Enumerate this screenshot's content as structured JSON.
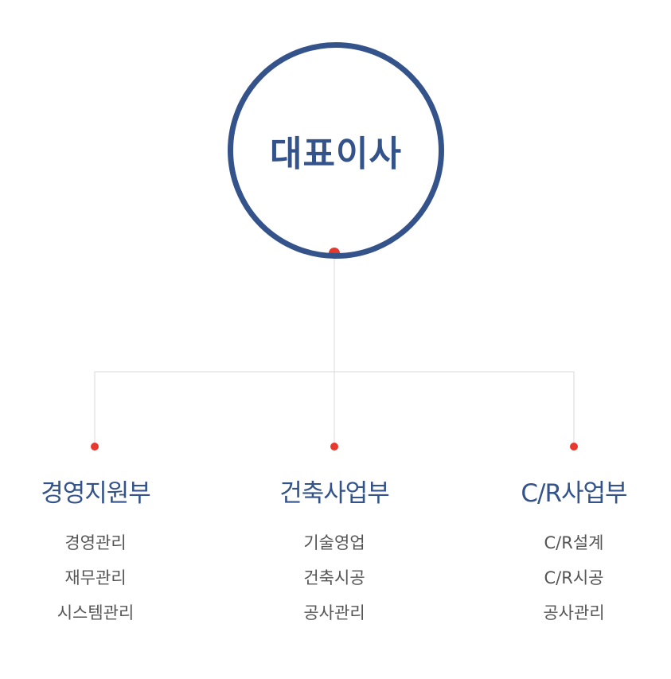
{
  "chart": {
    "root": {
      "title": "대표이사"
    },
    "departments": [
      {
        "name": "경영지원부",
        "items": [
          "경영관리",
          "재무관리",
          "시스템관리"
        ]
      },
      {
        "name": "건축사업부",
        "items": [
          "기술영업",
          "건축시공",
          "공사관리"
        ]
      },
      {
        "name": "C/R사업부",
        "items": [
          "C/R설계",
          "C/R시공",
          "공사관리"
        ]
      }
    ]
  },
  "colors": {
    "primary": "#33538a",
    "accent_dot": "#e8392f",
    "connector": "#d9d9d9",
    "item_text": "#555555"
  }
}
